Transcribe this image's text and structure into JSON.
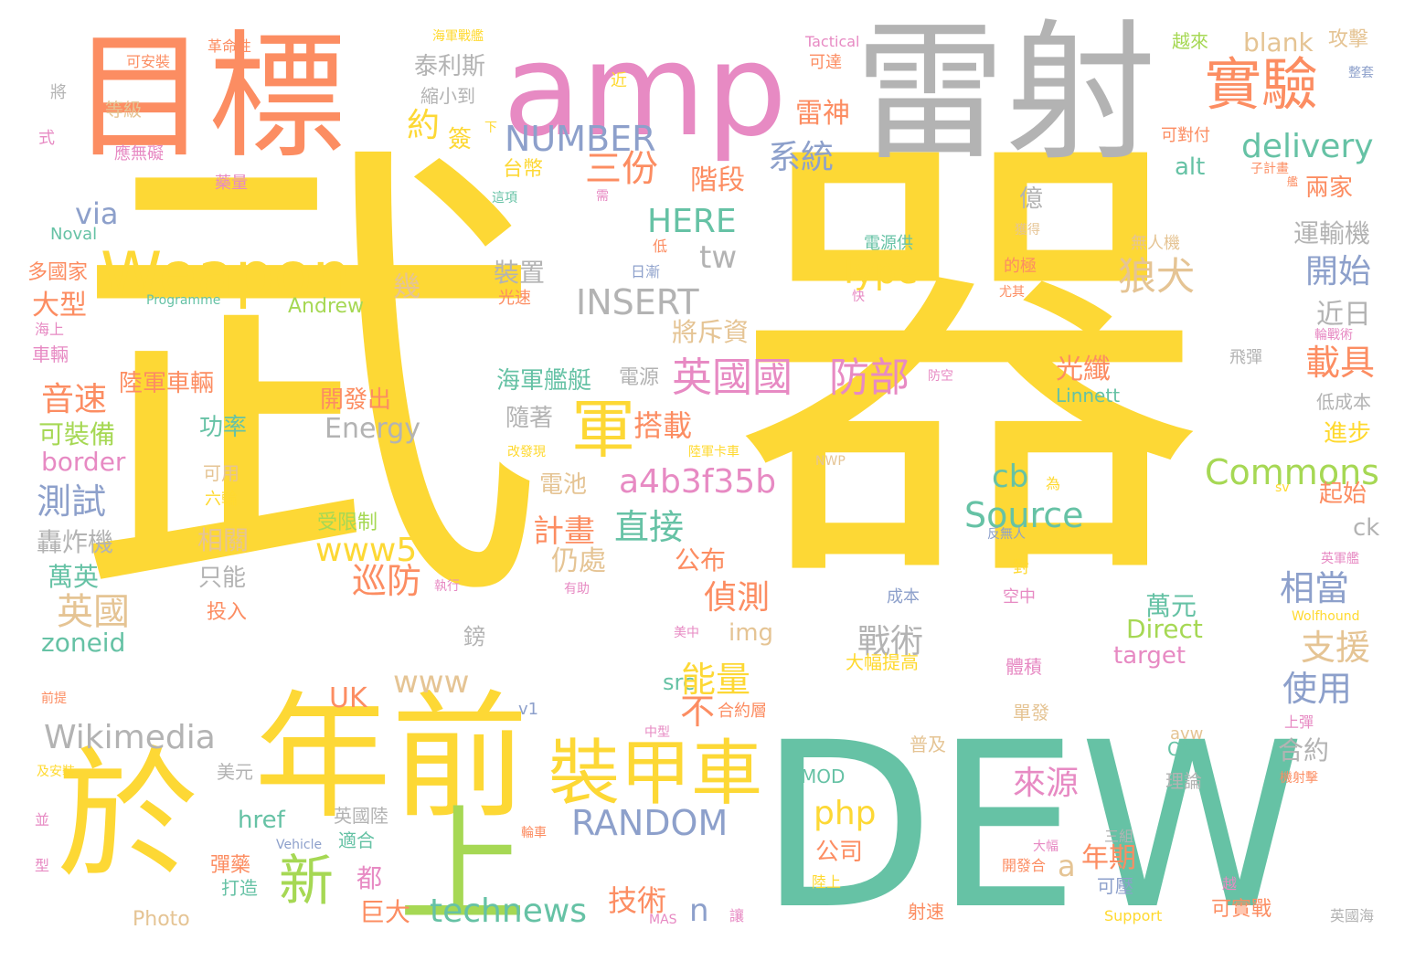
{
  "palette": {
    "yellow": "#fdd835",
    "green": "#66c2a5",
    "orange": "#fc8d62",
    "blue": "#8da0cb",
    "pink": "#e78ac3",
    "lime": "#a6d854",
    "gold": "#ffd92f",
    "tan": "#e5c494",
    "gray": "#b3b3b3"
  },
  "words": [
    {
      "id": "wuqi-1",
      "t": "武",
      "c": "yellow"
    },
    {
      "id": "wuqi-2",
      "t": "器",
      "c": "yellow"
    },
    {
      "id": "dew",
      "t": "DEW",
      "c": "green"
    },
    {
      "id": "leishe",
      "t": "雷射",
      "c": "gray"
    },
    {
      "id": "mubiao",
      "t": "目標",
      "c": "orange"
    },
    {
      "id": "amp",
      "t": "amp",
      "c": "pink"
    },
    {
      "id": "yu",
      "t": "於",
      "c": "yellow"
    },
    {
      "id": "nianqian",
      "t": "年前",
      "c": "yellow"
    },
    {
      "id": "shang",
      "t": "上",
      "c": "lime"
    },
    {
      "id": "weapon",
      "t": "Weapon",
      "c": "yellow"
    },
    {
      "id": "zhuangjiache",
      "t": "裝甲車",
      "c": "yellow"
    },
    {
      "id": "shiyan",
      "t": "實驗",
      "c": "orange"
    },
    {
      "id": "jun",
      "t": "軍",
      "c": "yellow"
    },
    {
      "id": "xin",
      "t": "新",
      "c": "lime"
    },
    {
      "id": "a4b3f35b",
      "t": "a4b3f35b",
      "c": "pink"
    },
    {
      "id": "yingguoguo",
      "t": "英國國",
      "c": "pink"
    },
    {
      "id": "fangbu",
      "t": "防部",
      "c": "pink"
    },
    {
      "id": "wikimedia",
      "t": "Wikimedia",
      "c": "gray"
    },
    {
      "id": "technews",
      "t": "technews",
      "c": "green"
    },
    {
      "id": "random",
      "t": "RANDOM",
      "c": "blue"
    },
    {
      "id": "commons",
      "t": "Commons",
      "c": "lime"
    },
    {
      "id": "source",
      "t": "Source",
      "c": "green"
    },
    {
      "id": "insert",
      "t": "INSERT",
      "c": "gray"
    },
    {
      "id": "number",
      "t": "NUMBER",
      "c": "blue"
    },
    {
      "id": "delivery",
      "t": "delivery",
      "c": "green"
    },
    {
      "id": "type",
      "t": "Type",
      "c": "yellow"
    },
    {
      "id": "php",
      "t": "php",
      "c": "yellow"
    },
    {
      "id": "www5",
      "t": "www5",
      "c": "yellow"
    },
    {
      "id": "here",
      "t": "HERE",
      "c": "green"
    },
    {
      "id": "via",
      "t": "via",
      "c": "blue"
    },
    {
      "id": "tw",
      "t": "tw",
      "c": "gray"
    },
    {
      "id": "www",
      "t": "www",
      "c": "tan"
    },
    {
      "id": "uk",
      "t": "UK",
      "c": "orange"
    },
    {
      "id": "cb",
      "t": "cb",
      "c": "green"
    },
    {
      "id": "n",
      "t": "n",
      "c": "blue"
    },
    {
      "id": "a",
      "t": "a",
      "c": "tan"
    },
    {
      "id": "src",
      "t": "src",
      "c": "green"
    },
    {
      "id": "energy",
      "t": "Energy",
      "c": "gray"
    },
    {
      "id": "href",
      "t": "href",
      "c": "green"
    },
    {
      "id": "border",
      "t": "border",
      "c": "pink"
    },
    {
      "id": "zoneid",
      "t": "zoneid",
      "c": "green"
    },
    {
      "id": "img",
      "t": "img",
      "c": "tan"
    },
    {
      "id": "direct",
      "t": "Direct",
      "c": "lime"
    },
    {
      "id": "target",
      "t": "target",
      "c": "pink"
    },
    {
      "id": "alt",
      "t": "alt",
      "c": "green"
    },
    {
      "id": "blank",
      "t": "blank",
      "c": "tan"
    },
    {
      "id": "ck",
      "t": "ck",
      "c": "gray"
    },
    {
      "id": "andrew",
      "t": "Andrew",
      "c": "lime"
    },
    {
      "id": "linnett",
      "t": "Linnett",
      "c": "green"
    },
    {
      "id": "photo",
      "t": "Photo",
      "c": "tan"
    },
    {
      "id": "ogl",
      "t": "OGL",
      "c": "green"
    },
    {
      "id": "mod",
      "t": "MOD",
      "c": "green"
    },
    {
      "id": "avw",
      "t": "avw",
      "c": "tan"
    },
    {
      "id": "v1",
      "t": "v1",
      "c": "blue"
    },
    {
      "id": "nwp",
      "t": "NWP",
      "c": "tan"
    },
    {
      "id": "sv",
      "t": "sv",
      "c": "gold"
    },
    {
      "id": "noval",
      "t": "Noval",
      "c": "green"
    },
    {
      "id": "programme",
      "t": "Programme",
      "c": "green"
    },
    {
      "id": "tactical",
      "t": "Tactical",
      "c": "pink"
    },
    {
      "id": "vehicle",
      "t": "Vehicle",
      "c": "blue"
    },
    {
      "id": "support",
      "t": "Support",
      "c": "gold"
    },
    {
      "id": "mas",
      "t": "MAS",
      "c": "pink"
    },
    {
      "id": "wolfhound",
      "t": "Wolfhound",
      "c": "gold"
    },
    {
      "id": "taili",
      "t": "泰利斯",
      "c": "gray"
    },
    {
      "id": "suoxiaodao",
      "t": "縮小到",
      "c": "gray"
    },
    {
      "id": "yue",
      "t": "約",
      "c": "yellow"
    },
    {
      "id": "qian",
      "t": "簽",
      "c": "yellow"
    },
    {
      "id": "taibi",
      "t": "台幣",
      "c": "yellow"
    },
    {
      "id": "sanfen",
      "t": "三份",
      "c": "orange"
    },
    {
      "id": "leishen",
      "t": "雷神",
      "c": "orange"
    },
    {
      "id": "xitong",
      "t": "系統",
      "c": "blue"
    },
    {
      "id": "jieduan",
      "t": "階段",
      "c": "orange"
    },
    {
      "id": "langquan",
      "t": "狼犬",
      "c": "tan"
    },
    {
      "id": "kaishi",
      "t": "開始",
      "c": "blue"
    },
    {
      "id": "jinri",
      "t": "近日",
      "c": "gray"
    },
    {
      "id": "zaiju",
      "t": "載具",
      "c": "orange"
    },
    {
      "id": "guangxian",
      "t": "光纖",
      "c": "orange"
    },
    {
      "id": "zhuangzhi",
      "t": "裝置",
      "c": "gray"
    },
    {
      "id": "jiangchi",
      "t": "將斥資",
      "c": "tan"
    },
    {
      "id": "dazhuan",
      "t": "大型",
      "c": "orange"
    },
    {
      "id": "yinsu",
      "t": "音速",
      "c": "orange"
    },
    {
      "id": "lujuncheliang",
      "t": "陸軍車輛",
      "c": "orange"
    },
    {
      "id": "kezhuangbei",
      "t": "可裝備",
      "c": "lime"
    },
    {
      "id": "gonglv",
      "t": "功率",
      "c": "green"
    },
    {
      "id": "ceshi",
      "t": "測試",
      "c": "blue"
    },
    {
      "id": "hongzhaji",
      "t": "轟炸機",
      "c": "gray"
    },
    {
      "id": "xiangguan",
      "t": "相關",
      "c": "tan"
    },
    {
      "id": "wanying",
      "t": "萬英",
      "c": "green"
    },
    {
      "id": "yingguo",
      "t": "英國",
      "c": "tan"
    },
    {
      "id": "haijunjianting",
      "t": "海軍艦艇",
      "c": "green"
    },
    {
      "id": "dianyuan",
      "t": "電源",
      "c": "gray"
    },
    {
      "id": "dazai",
      "t": "搭載",
      "c": "orange"
    },
    {
      "id": "suizhe",
      "t": "隨著",
      "c": "gray"
    },
    {
      "id": "dianchi",
      "t": "電池",
      "c": "tan"
    },
    {
      "id": "jihua",
      "t": "計畫",
      "c": "orange"
    },
    {
      "id": "zhijie",
      "t": "直接",
      "c": "green"
    },
    {
      "id": "rengchu",
      "t": "仍處",
      "c": "tan"
    },
    {
      "id": "xunfang",
      "t": "巡防",
      "c": "orange"
    },
    {
      "id": "gongbu",
      "t": "公布",
      "c": "orange"
    },
    {
      "id": "zhence",
      "t": "偵測",
      "c": "orange"
    },
    {
      "id": "nengliang",
      "t": "能量",
      "c": "yellow"
    },
    {
      "id": "bu",
      "t": "不",
      "c": "orange"
    },
    {
      "id": "zhanshu",
      "t": "戰術",
      "c": "gray"
    },
    {
      "id": "laiyuan",
      "t": "來源",
      "c": "pink"
    },
    {
      "id": "xiangdang",
      "t": "相當",
      "c": "blue"
    },
    {
      "id": "zhiyuan",
      "t": "支援",
      "c": "tan"
    },
    {
      "id": "shiyong",
      "t": "使用",
      "c": "blue"
    },
    {
      "id": "heyue",
      "t": "合約",
      "c": "gray"
    },
    {
      "id": "wanyuan",
      "t": "萬元",
      "c": "green"
    },
    {
      "id": "gongsi",
      "t": "公司",
      "c": "orange"
    },
    {
      "id": "niangqi",
      "t": "年期",
      "c": "orange"
    },
    {
      "id": "jishu",
      "t": "技術",
      "c": "orange"
    },
    {
      "id": "juda",
      "t": "巨大",
      "c": "orange"
    },
    {
      "id": "du",
      "t": "都",
      "c": "pink"
    },
    {
      "id": "kaifachu",
      "t": "開發出",
      "c": "orange"
    },
    {
      "id": "zhineng",
      "t": "只能",
      "c": "gray"
    },
    {
      "id": "touru",
      "t": "投入",
      "c": "orange"
    },
    {
      "id": "bang",
      "t": "鎊",
      "c": "gray"
    },
    {
      "id": "shiheguo",
      "t": "適合",
      "c": "green"
    },
    {
      "id": "yingguolu",
      "t": "英國陸",
      "c": "gray"
    },
    {
      "id": "meiyuan",
      "t": "美元",
      "c": "gray"
    },
    {
      "id": "danyao",
      "t": "彈藥",
      "c": "orange"
    },
    {
      "id": "dazao",
      "t": "打造",
      "c": "green"
    },
    {
      "id": "liulun",
      "t": "六輪",
      "c": "gold"
    },
    {
      "id": "keyong",
      "t": "可用",
      "c": "tan"
    },
    {
      "id": "shouxianzhi",
      "t": "受限制",
      "c": "lime"
    },
    {
      "id": "ji",
      "t": "幾",
      "c": "tan"
    },
    {
      "id": "yi",
      "t": "億",
      "c": "gray"
    },
    {
      "id": "yunshuji",
      "t": "運輸機",
      "c": "gray"
    },
    {
      "id": "liangjia",
      "t": "兩家",
      "c": "orange"
    },
    {
      "id": "gongji",
      "t": "攻擊",
      "c": "tan"
    },
    {
      "id": "yuelai",
      "t": "越來",
      "c": "lime"
    },
    {
      "id": "keduifu",
      "t": "可對付",
      "c": "orange"
    },
    {
      "id": "jinbu",
      "t": "進步",
      "c": "gold"
    },
    {
      "id": "dichengben",
      "t": "低成本",
      "c": "gray"
    },
    {
      "id": "qishi",
      "t": "起始",
      "c": "orange"
    },
    {
      "id": "danfa",
      "t": "單發",
      "c": "tan"
    },
    {
      "id": "tiji",
      "t": "體積",
      "c": "pink"
    },
    {
      "id": "kongzhong",
      "t": "空中",
      "c": "pink"
    },
    {
      "id": "lilun",
      "t": "理論",
      "c": "gray"
    },
    {
      "id": "kejiabin",
      "t": "可壓",
      "c": "blue"
    },
    {
      "id": "sheshu",
      "t": "射速",
      "c": "orange"
    },
    {
      "id": "kezhanshi",
      "t": "可實戰",
      "c": "orange"
    },
    {
      "id": "duoguojia",
      "t": "多國家",
      "c": "orange"
    },
    {
      "id": "haishang",
      "t": "海上",
      "c": "pink"
    },
    {
      "id": "cheliang",
      "t": "車輛",
      "c": "pink"
    },
    {
      "id": "dengji",
      "t": "等級",
      "c": "tan"
    },
    {
      "id": "yingwuai",
      "t": "應無礙",
      "c": "pink"
    },
    {
      "id": "yaoliang",
      "t": "藥量",
      "c": "pink"
    },
    {
      "id": "kean",
      "t": "可安裝",
      "c": "orange"
    },
    {
      "id": "gemingxing",
      "t": "革命性",
      "c": "orange"
    },
    {
      "id": "haijunjianjian",
      "t": "海軍戰艦",
      "c": "gold"
    },
    {
      "id": "kesu",
      "t": "可達",
      "c": "orange"
    },
    {
      "id": "jin",
      "t": "近",
      "c": "gold"
    },
    {
      "id": "dianyuangong",
      "t": "電源供",
      "c": "green"
    },
    {
      "id": "wurenji",
      "t": "無人機",
      "c": "tan"
    },
    {
      "id": "xiaaaa",
      "t": "下",
      "c": "gold"
    },
    {
      "id": "zhexiang",
      "t": "這項",
      "c": "green"
    },
    {
      "id": "xu",
      "t": "需",
      "c": "pink"
    },
    {
      "id": "di",
      "t": "低",
      "c": "orange"
    },
    {
      "id": "rijian",
      "t": "日漸",
      "c": "blue"
    },
    {
      "id": "guangsu",
      "t": "光速",
      "c": "orange"
    },
    {
      "id": "kuai",
      "t": "快",
      "c": "pink"
    },
    {
      "id": "huode",
      "t": "獲得",
      "c": "tan"
    },
    {
      "id": "deji",
      "t": "的極",
      "c": "orange"
    },
    {
      "id": "youqi",
      "t": "尤其",
      "c": "orange"
    },
    {
      "id": "fangkong",
      "t": "防空",
      "c": "pink"
    },
    {
      "id": "feidan",
      "t": "飛彈",
      "c": "gray"
    },
    {
      "id": "gaifaxian",
      "t": "改發現",
      "c": "gold"
    },
    {
      "id": "lujunkache",
      "t": "陸軍卡車",
      "c": "gold"
    },
    {
      "id": "wei",
      "t": "為",
      "c": "gold"
    },
    {
      "id": "fanwuren",
      "t": "反無人",
      "c": "blue"
    },
    {
      "id": "dui",
      "t": "對",
      "c": "gold"
    },
    {
      "id": "chengben",
      "t": "成本",
      "c": "blue"
    },
    {
      "id": "youzhu",
      "t": "有助",
      "c": "pink"
    },
    {
      "id": "zhixing",
      "t": "執行",
      "c": "pink"
    },
    {
      "id": "meizhong",
      "t": "美中",
      "c": "pink"
    },
    {
      "id": "dafutigao",
      "t": "大幅提高",
      "c": "gold"
    },
    {
      "id": "heyueceng",
      "t": "合約層",
      "c": "orange"
    },
    {
      "id": "zhongxing",
      "t": "中型",
      "c": "pink"
    },
    {
      "id": "shangdan",
      "t": "上彈",
      "c": "pink"
    },
    {
      "id": "puji",
      "t": "普及",
      "c": "tan"
    },
    {
      "id": "lunche",
      "t": "輪車",
      "c": "orange"
    },
    {
      "id": "dafu",
      "t": "大幅",
      "c": "pink"
    },
    {
      "id": "kaifahe",
      "t": "開發合",
      "c": "orange"
    },
    {
      "id": "lushang",
      "t": "陸上",
      "c": "gold"
    },
    {
      "id": "sanzu",
      "t": "三組",
      "c": "gray"
    },
    {
      "id": "yue2",
      "t": "越",
      "c": "pink"
    },
    {
      "id": "rang",
      "t": "讓",
      "c": "pink"
    },
    {
      "id": "yingguohai",
      "t": "英國海",
      "c": "gray"
    },
    {
      "id": "yingjunjian",
      "t": "英軍艦",
      "c": "pink"
    },
    {
      "id": "lunzhanshu",
      "t": "輪戰術",
      "c": "pink"
    },
    {
      "id": "zijihua",
      "t": "子計畫",
      "c": "orange"
    },
    {
      "id": "jian",
      "t": "艦",
      "c": "orange"
    },
    {
      "id": "zhengtao",
      "t": "整套",
      "c": "blue"
    },
    {
      "id": "jiang",
      "t": "將",
      "c": "gray"
    },
    {
      "id": "shi",
      "t": "式",
      "c": "pink"
    },
    {
      "id": "qianti",
      "t": "前提",
      "c": "orange"
    },
    {
      "id": "jianzhuang",
      "t": "及安裝",
      "c": "gold"
    },
    {
      "id": "bing",
      "t": "並",
      "c": "pink"
    },
    {
      "id": "xing",
      "t": "型",
      "c": "pink"
    },
    {
      "id": "jishenshe",
      "t": "機射擊",
      "c": "orange"
    }
  ]
}
